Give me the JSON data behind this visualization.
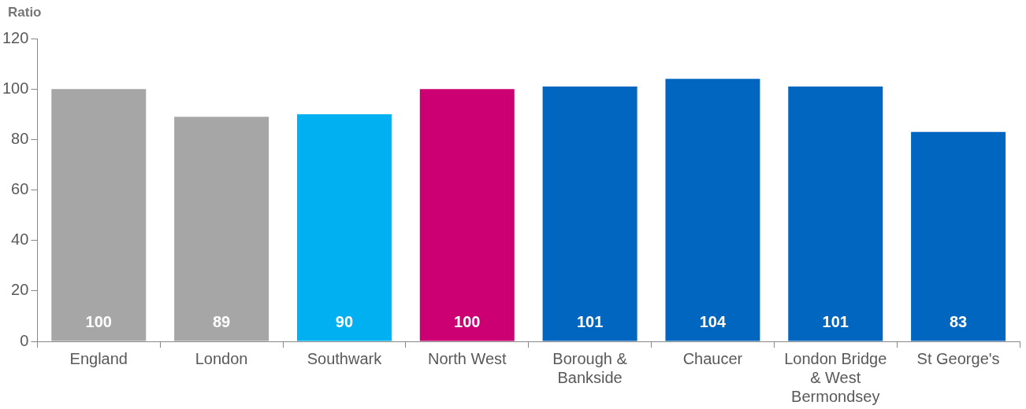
{
  "chart_data": {
    "type": "bar",
    "ylabel": "Ratio",
    "categories": [
      "England",
      "London",
      "Southwark",
      "North West",
      "Borough & Bankside",
      "Chaucer",
      "London Bridge & West Bermondsey",
      "St George's"
    ],
    "values": [
      100,
      89,
      90,
      100,
      101,
      104,
      101,
      83
    ],
    "colors": [
      "#a6a6a6",
      "#a6a6a6",
      "#00b0f0",
      "#cc0073",
      "#0066bf",
      "#0066bf",
      "#0066bf",
      "#0066bf"
    ],
    "ylim": [
      0,
      120
    ],
    "yticks": [
      0,
      20,
      40,
      60,
      80,
      100,
      120
    ],
    "grid": false,
    "legend": false,
    "data_labels": true
  }
}
